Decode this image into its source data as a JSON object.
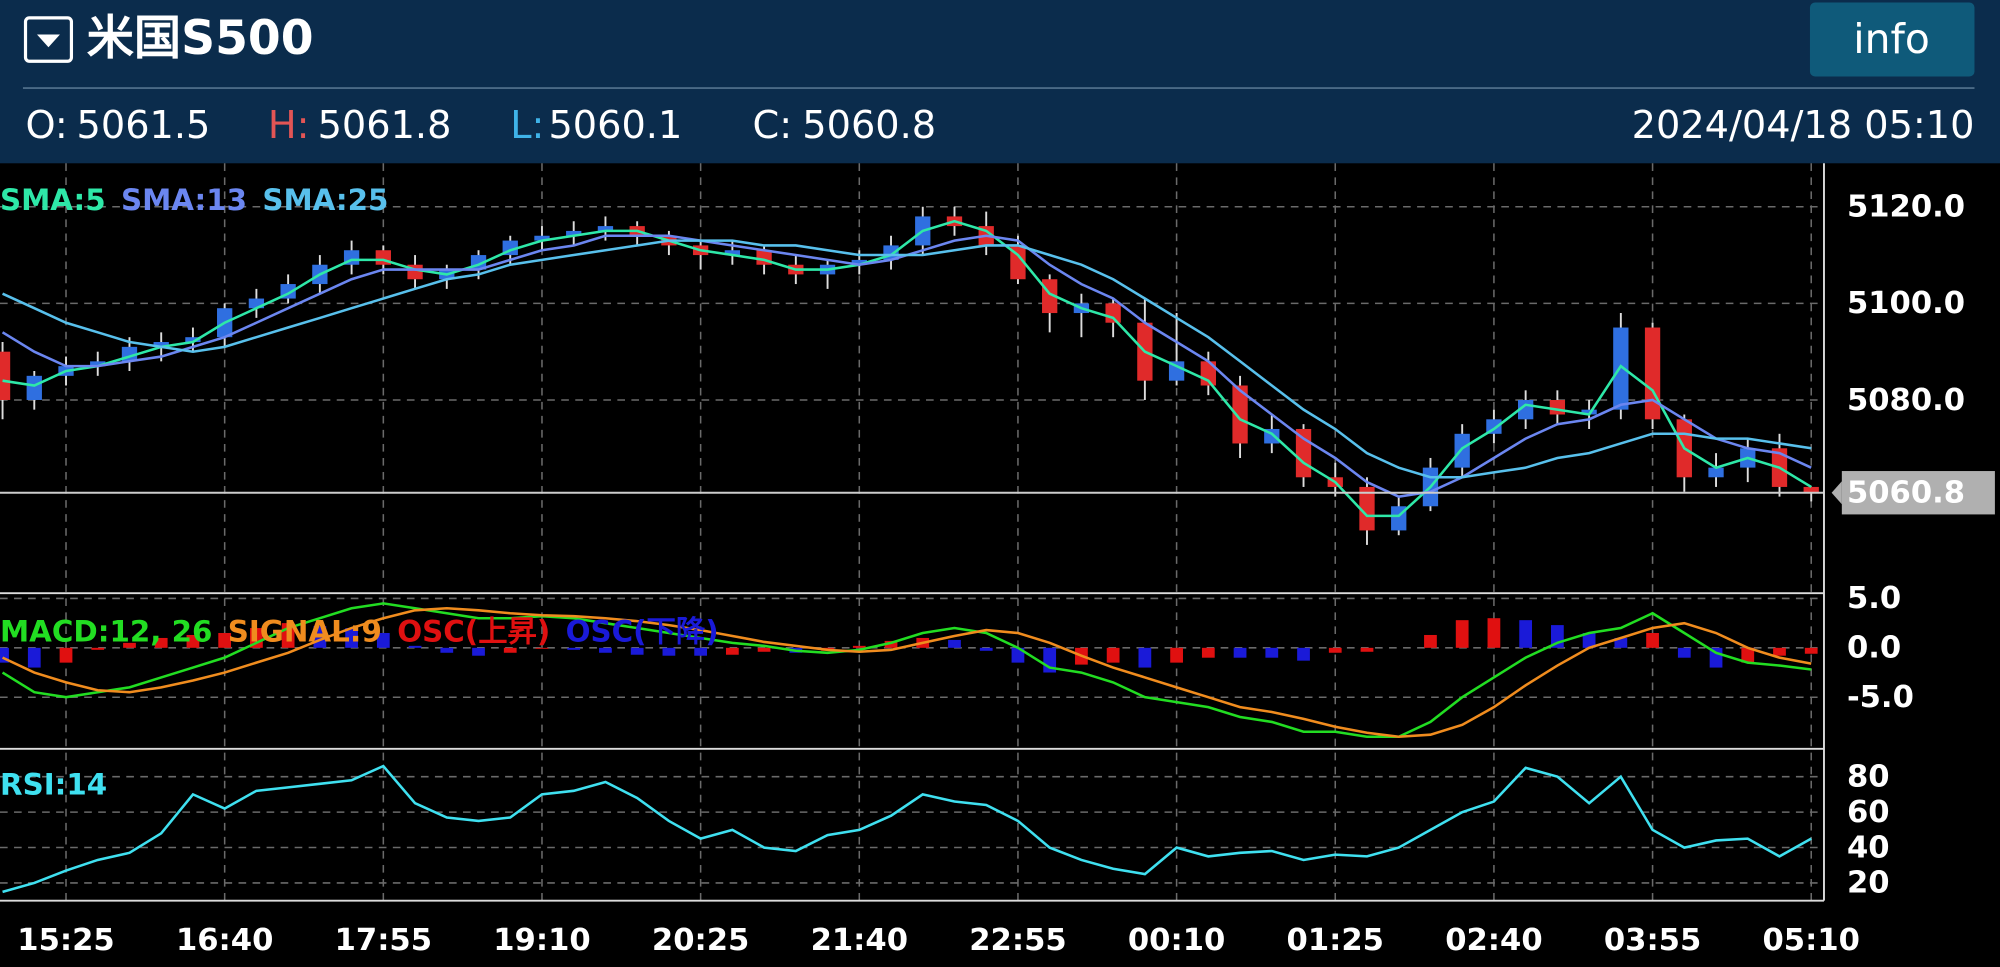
{
  "header": {
    "title": "米国S500",
    "button": "info",
    "ohlc": [
      {
        "label": "O:",
        "value": 5061.5
      },
      {
        "label": "H:",
        "value": 5061.8
      },
      {
        "label": "L:",
        "value": 5060.1
      },
      {
        "label": "C:",
        "value": 5060.8
      }
    ],
    "datetime": "2024/04/18 05:10"
  },
  "chart_data": [
    {
      "type": "candlestick",
      "categories": [
        null,
        null,
        "15:25",
        null,
        null,
        null,
        null,
        "16:40",
        null,
        null,
        null,
        null,
        "17:55",
        null,
        null,
        null,
        null,
        "19:10",
        null,
        null,
        null,
        null,
        "20:25",
        null,
        null,
        null,
        null,
        "21:40",
        null,
        null,
        null,
        null,
        "22:55",
        null,
        null,
        null,
        null,
        "00:10",
        null,
        null,
        null,
        null,
        "01:25",
        null,
        null,
        null,
        null,
        "02:40",
        null,
        null,
        null,
        null,
        "03:55",
        null,
        null,
        null,
        null,
        "05:10"
      ],
      "open": [
        5090,
        5080,
        5085,
        5087,
        5088,
        5091,
        5092,
        5093,
        5099,
        5101,
        5104,
        5108,
        5111,
        5108,
        5105,
        5107,
        5110,
        5113,
        5114,
        5115,
        5116,
        5114,
        5112,
        5110,
        5111,
        5108,
        5106,
        5108,
        5109,
        5112,
        5118,
        5116,
        5112,
        5105,
        5098,
        5100,
        5096,
        5084,
        5088,
        5083,
        5071,
        5074,
        5064,
        5062,
        5053,
        5058,
        5066,
        5073,
        5076,
        5080,
        5077,
        5078,
        5095,
        5076,
        5064,
        5066,
        5070,
        5062
      ],
      "high": [
        5092,
        5086,
        5089,
        5090,
        5093,
        5094,
        5095,
        5100,
        5103,
        5106,
        5110,
        5113,
        5112,
        5110,
        5108,
        5111,
        5114,
        5116,
        5117,
        5118,
        5117,
        5115,
        5113,
        5113,
        5112,
        5110,
        5109,
        5111,
        5114,
        5120,
        5120,
        5119,
        5114,
        5106,
        5102,
        5101,
        5101,
        5098,
        5090,
        5085,
        5077,
        5075,
        5067,
        5064,
        5060,
        5068,
        5075,
        5078,
        5082,
        5082,
        5080,
        5098,
        5096,
        5077,
        5069,
        5072,
        5073,
        5062
      ],
      "low": [
        5076,
        5078,
        5083,
        5085,
        5086,
        5088,
        5090,
        5091,
        5097,
        5100,
        5102,
        5106,
        5106,
        5103,
        5103,
        5105,
        5108,
        5111,
        5112,
        5113,
        5112,
        5110,
        5107,
        5108,
        5106,
        5104,
        5103,
        5106,
        5107,
        5110,
        5114,
        5110,
        5104,
        5094,
        5093,
        5093,
        5080,
        5083,
        5081,
        5068,
        5069,
        5062,
        5060,
        5050,
        5052,
        5057,
        5064,
        5071,
        5074,
        5075,
        5074,
        5076,
        5074,
        5061,
        5062,
        5063,
        5060,
        5059
      ],
      "close": [
        5080,
        5085,
        5087,
        5088,
        5091,
        5092,
        5093,
        5099,
        5101,
        5104,
        5108,
        5111,
        5108,
        5105,
        5107,
        5110,
        5113,
        5114,
        5115,
        5116,
        5114,
        5112,
        5110,
        5111,
        5108,
        5106,
        5108,
        5109,
        5112,
        5118,
        5116,
        5112,
        5105,
        5098,
        5100,
        5096,
        5084,
        5088,
        5083,
        5071,
        5074,
        5064,
        5062,
        5053,
        5058,
        5066,
        5073,
        5076,
        5080,
        5077,
        5078,
        5095,
        5076,
        5064,
        5066,
        5070,
        5062,
        5060.8
      ],
      "up_color": "#2f6fe0",
      "down_color": "#e02a2a",
      "series": [
        {
          "name": "SMA:5",
          "color": "#2ee8a8",
          "values": [
            5084,
            5083,
            5086,
            5087,
            5089,
            5091,
            5092,
            5096,
            5099,
            5102,
            5106,
            5109,
            5109,
            5107,
            5106,
            5108,
            5111,
            5113,
            5114,
            5115,
            5115,
            5113,
            5111,
            5110,
            5109,
            5107,
            5107,
            5108,
            5110,
            5115,
            5117,
            5115,
            5110,
            5102,
            5099,
            5097,
            5090,
            5087,
            5084,
            5076,
            5073,
            5067,
            5063,
            5056,
            5056,
            5062,
            5070,
            5074,
            5079,
            5078,
            5077,
            5087,
            5082,
            5070,
            5066,
            5068,
            5066,
            5062
          ]
        },
        {
          "name": "SMA:13",
          "color": "#6b86f0",
          "values": [
            5094,
            5090,
            5087,
            5087,
            5088,
            5089,
            5091,
            5093,
            5096,
            5099,
            5102,
            5105,
            5107,
            5107,
            5107,
            5107,
            5109,
            5111,
            5112,
            5114,
            5114,
            5114,
            5113,
            5112,
            5111,
            5110,
            5109,
            5108,
            5109,
            5111,
            5113,
            5114,
            5113,
            5108,
            5104,
            5101,
            5096,
            5092,
            5088,
            5082,
            5077,
            5072,
            5068,
            5063,
            5060,
            5061,
            5064,
            5068,
            5072,
            5075,
            5076,
            5079,
            5080,
            5076,
            5072,
            5070,
            5069,
            5066
          ]
        },
        {
          "name": "SMA:25",
          "color": "#58c0ec",
          "values": [
            5102,
            5099,
            5096,
            5094,
            5092,
            5091,
            5090,
            5091,
            5093,
            5095,
            5097,
            5099,
            5101,
            5103,
            5105,
            5106,
            5108,
            5109,
            5110,
            5111,
            5112,
            5113,
            5113,
            5113,
            5112,
            5112,
            5111,
            5110,
            5110,
            5110,
            5111,
            5112,
            5112,
            5110,
            5108,
            5105,
            5101,
            5097,
            5093,
            5088,
            5083,
            5078,
            5074,
            5069,
            5066,
            5064,
            5064,
            5065,
            5066,
            5068,
            5069,
            5071,
            5073,
            5073,
            5072,
            5072,
            5071,
            5070
          ]
        }
      ],
      "last_price": 5060.8,
      "ylim": [
        5040,
        5129
      ],
      "yticks": [
        {
          "value": 5120,
          "label": "5120.0"
        },
        {
          "value": 5100,
          "label": "5100.0"
        },
        {
          "value": 5080,
          "label": "5080.0"
        }
      ],
      "grid": true
    },
    {
      "type": "line",
      "series": [
        {
          "name": "MACD:12, 26",
          "color": "#22dd22",
          "values": [
            -2.5,
            -4.5,
            -5,
            -4.5,
            -4,
            -3,
            -2,
            -1,
            0.5,
            2,
            3,
            4,
            4.5,
            4,
            3.5,
            3,
            3,
            3.2,
            3,
            2.5,
            2,
            1.5,
            1,
            0.5,
            0.2,
            -0.3,
            -0.5,
            -0.2,
            0.5,
            1.5,
            2,
            1.5,
            0,
            -2,
            -2.5,
            -3.5,
            -5,
            -5.5,
            -6,
            -7,
            -7.5,
            -8.5,
            -8.5,
            -9,
            -9,
            -7.5,
            -5,
            -3,
            -1,
            0.5,
            1.5,
            2,
            3.5,
            1.5,
            -0.5,
            -1.5,
            -1.8,
            -2.2
          ]
        },
        {
          "name": "SIGNAL:9",
          "color": "#f08c1e",
          "values": [
            -1,
            -2.5,
            -3.5,
            -4.3,
            -4.5,
            -4,
            -3.3,
            -2.5,
            -1.5,
            -0.5,
            0.8,
            2,
            3,
            3.8,
            4,
            3.8,
            3.5,
            3.3,
            3.2,
            3,
            2.7,
            2.3,
            1.8,
            1.2,
            0.6,
            0.2,
            -0.2,
            -0.4,
            -0.2,
            0.5,
            1.2,
            1.8,
            1.5,
            0.5,
            -0.8,
            -2,
            -3,
            -4,
            -5,
            -6,
            -6.5,
            -7.2,
            -8,
            -8.6,
            -9,
            -8.8,
            -7.8,
            -6,
            -3.8,
            -1.8,
            0,
            1,
            2,
            2.5,
            1.5,
            0,
            -1,
            -1.6
          ]
        },
        {
          "name": "OSC(上昇)",
          "color": "#e01010",
          "type": "bar",
          "values": [
            null,
            null,
            -1.5,
            -0.2,
            0.5,
            1,
            1.3,
            1.5,
            2,
            2.5,
            null,
            null,
            null,
            null,
            null,
            null,
            -0.5,
            -0.1,
            null,
            null,
            null,
            null,
            null,
            -0.7,
            -0.4,
            null,
            -0.3,
            0.2,
            0.7,
            1,
            null,
            null,
            null,
            null,
            -1.7,
            -1.5,
            null,
            -1.5,
            -1,
            null,
            null,
            null,
            -0.5,
            -0.4,
            0,
            1.3,
            2.8,
            3,
            null,
            null,
            null,
            null,
            1.5,
            null,
            null,
            -1.5,
            -0.8,
            -0.6
          ]
        },
        {
          "name": "OSC(下降)",
          "color": "#1a1ad8",
          "type": "bar",
          "values": [
            -1.5,
            -2,
            null,
            null,
            null,
            null,
            null,
            null,
            null,
            null,
            2.2,
            2,
            1.5,
            0.2,
            -0.5,
            -0.8,
            null,
            null,
            -0.2,
            -0.5,
            -0.7,
            -0.8,
            -0.8,
            null,
            null,
            -0.5,
            null,
            null,
            null,
            null,
            0.8,
            -0.3,
            -1.5,
            -2.5,
            null,
            null,
            -2,
            null,
            null,
            -1,
            -1,
            -1.3,
            null,
            null,
            null,
            null,
            null,
            null,
            2.8,
            2.3,
            1.5,
            1,
            null,
            -1,
            -2,
            null,
            null,
            null
          ]
        }
      ],
      "ylim": [
        -10.1,
        5.4
      ],
      "yticks": [
        {
          "value": 5,
          "label": "5.0"
        },
        {
          "value": 0,
          "label": "0.0"
        },
        {
          "value": -5,
          "label": "-5.0"
        }
      ],
      "grid": true
    },
    {
      "type": "line",
      "series": [
        {
          "name": "RSI:14",
          "color": "#3fe0f0",
          "values": [
            15,
            20,
            27,
            33,
            37,
            48,
            70,
            62,
            72,
            74,
            76,
            78,
            86,
            65,
            57,
            55,
            57,
            70,
            72,
            77,
            68,
            55,
            45,
            50,
            40,
            38,
            47,
            50,
            58,
            70,
            66,
            64,
            55,
            40,
            33,
            28,
            25,
            40,
            35,
            37,
            38,
            33,
            36,
            35,
            40,
            50,
            60,
            66,
            85,
            80,
            65,
            80,
            50,
            40,
            44,
            45,
            35,
            45
          ]
        }
      ],
      "ylim": [
        10,
        95
      ],
      "yticks": [
        20,
        40,
        60,
        80
      ],
      "grid": true
    }
  ]
}
